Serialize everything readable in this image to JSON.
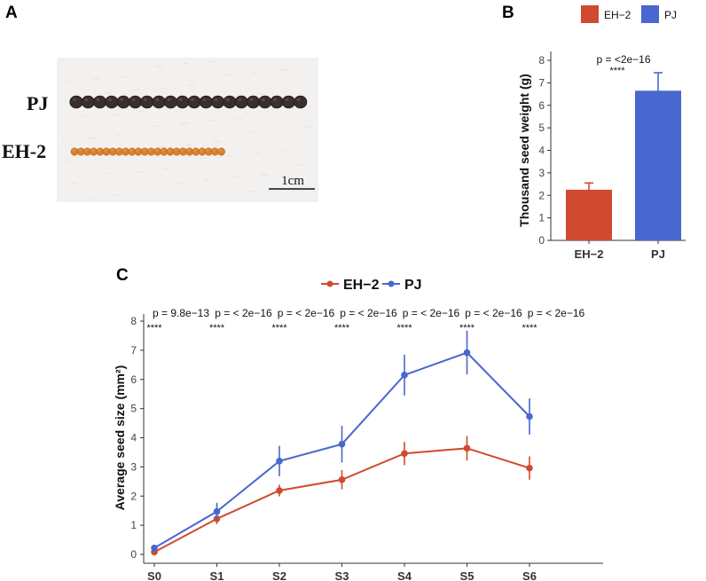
{
  "colors": {
    "eh2": "#d04a30",
    "pj": "#4a66cf"
  },
  "panel_a": {
    "label": "A",
    "row_labels": [
      "PJ",
      "EH-2"
    ],
    "scale_bar": "1cm",
    "seed_counts": {
      "pj": 20,
      "eh2": 24
    }
  },
  "chart_data": [
    {
      "type": "bar",
      "panel": "B",
      "categories": [
        "EH−2",
        "PJ"
      ],
      "values": [
        2.25,
        6.65
      ],
      "errors": [
        0.3,
        0.8
      ],
      "colors": [
        "#d04a30",
        "#4a66cf"
      ],
      "ylabel": "Thousand seed weight (g)",
      "xlabel": "",
      "ylim": [
        0,
        8
      ],
      "yticks": [
        0,
        1,
        2,
        3,
        4,
        5,
        6,
        7,
        8
      ],
      "legend": [
        "EH−2",
        "PJ"
      ],
      "legend_position": "top",
      "annotation": {
        "p": "p = <2e−16",
        "stars": "****"
      },
      "grid": false
    },
    {
      "type": "line",
      "panel": "C",
      "x": [
        "S0",
        "S1",
        "S2",
        "S3",
        "S4",
        "S5",
        "S6"
      ],
      "series": [
        {
          "name": "EH−2",
          "color": "#d04a30",
          "values": [
            0.08,
            1.22,
            2.19,
            2.56,
            3.46,
            3.64,
            2.96
          ],
          "errors": [
            0.05,
            0.18,
            0.2,
            0.33,
            0.4,
            0.42,
            0.4
          ]
        },
        {
          "name": "PJ",
          "color": "#4a66cf",
          "values": [
            0.22,
            1.47,
            3.2,
            3.78,
            6.15,
            6.92,
            4.73
          ],
          "errors": [
            0.06,
            0.3,
            0.52,
            0.63,
            0.7,
            0.75,
            0.62
          ]
        }
      ],
      "ylabel": "Average seed size (mm²)",
      "xlabel": "",
      "ylim": [
        0,
        8
      ],
      "yticks": [
        0,
        1,
        2,
        3,
        4,
        5,
        6,
        7,
        8
      ],
      "legend_position": "top",
      "annotations": [
        {
          "p": "p = 9.8e−13",
          "stars": "****"
        },
        {
          "p": "p = < 2e−16",
          "stars": "****"
        },
        {
          "p": "p = < 2e−16",
          "stars": "****"
        },
        {
          "p": "p = < 2e−16",
          "stars": "****"
        },
        {
          "p": "p = < 2e−16",
          "stars": "****"
        },
        {
          "p": "p = < 2e−16",
          "stars": "****"
        },
        {
          "p": "p = < 2e−16",
          "stars": "****"
        }
      ],
      "grid": false
    }
  ]
}
